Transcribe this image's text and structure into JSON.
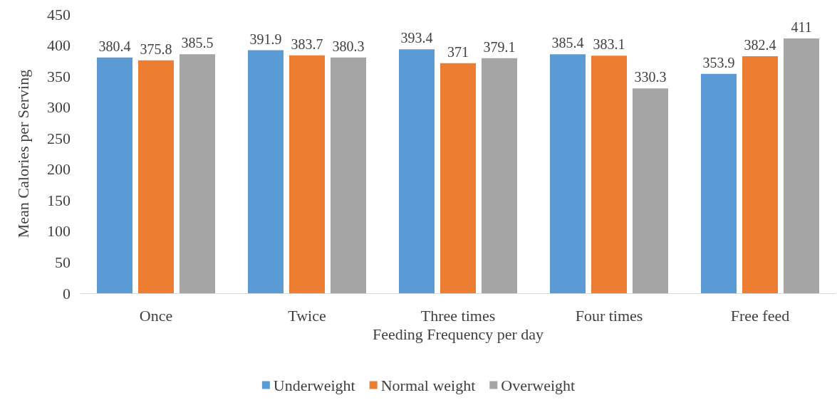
{
  "chart_data": {
    "type": "bar",
    "xlabel": "Feeding Frequency per day",
    "ylabel": "Mean Calories per Serving",
    "categories": [
      "Once",
      "Twice",
      "Three times",
      "Four times",
      "Free feed"
    ],
    "series": [
      {
        "name": "Underweight",
        "color": "#5b9bd5",
        "values": [
          380.4,
          391.9,
          393.4,
          385.4,
          353.9
        ]
      },
      {
        "name": "Normal weight",
        "color": "#ed7d31",
        "values": [
          375.8,
          383.7,
          371,
          383.1,
          382.4
        ]
      },
      {
        "name": "Overweight",
        "color": "#a5a5a5",
        "values": [
          385.5,
          380.3,
          379.1,
          330.3,
          411
        ]
      }
    ],
    "ylim": [
      0,
      450
    ],
    "yticks": [
      0,
      50,
      100,
      150,
      200,
      250,
      300,
      350,
      400,
      450
    ],
    "grid": false,
    "legend": "bottom",
    "data_labels": true
  }
}
